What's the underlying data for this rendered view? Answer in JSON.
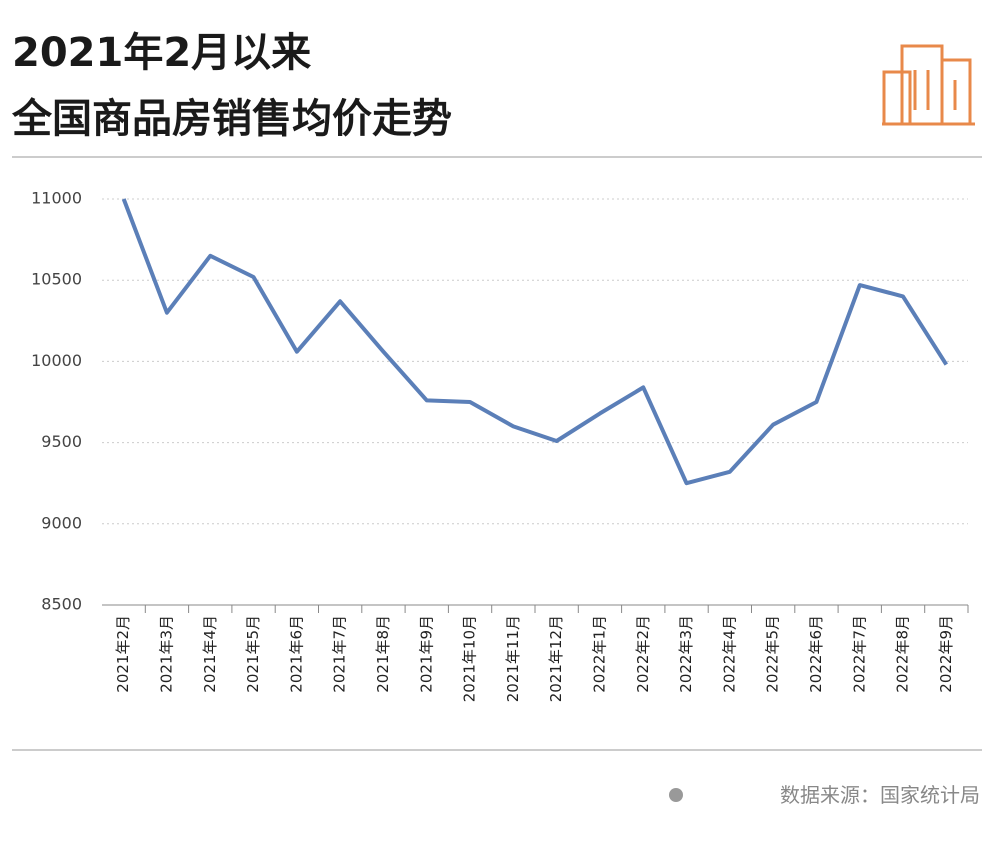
{
  "chart_data": {
    "type": "line",
    "title": "2021年2月以来",
    "subtitle": "全国商品房销售均价走势",
    "source": "数据来源：国家统计局",
    "categories": [
      "2021年2月",
      "2021年3月",
      "2021年4月",
      "2021年5月",
      "2021年6月",
      "2021年7月",
      "2021年8月",
      "2021年9月",
      "2021年10月",
      "2021年11月",
      "2021年12月",
      "2022年1月",
      "2022年2月",
      "2022年3月",
      "2022年4月",
      "2022年5月",
      "2022年6月",
      "2022年7月",
      "2022年8月",
      "2022年9月"
    ],
    "values": [
      11000,
      10300,
      10650,
      10520,
      10060,
      10370,
      10060,
      9760,
      9750,
      9600,
      9510,
      9680,
      9840,
      9250,
      9320,
      9610,
      9750,
      10470,
      10400,
      9980
    ],
    "color": "#5b7fb8",
    "ylim": [
      8500,
      11000
    ],
    "yticks": [
      8500,
      9000,
      9500,
      10000,
      10500,
      11000
    ],
    "grid": true
  }
}
